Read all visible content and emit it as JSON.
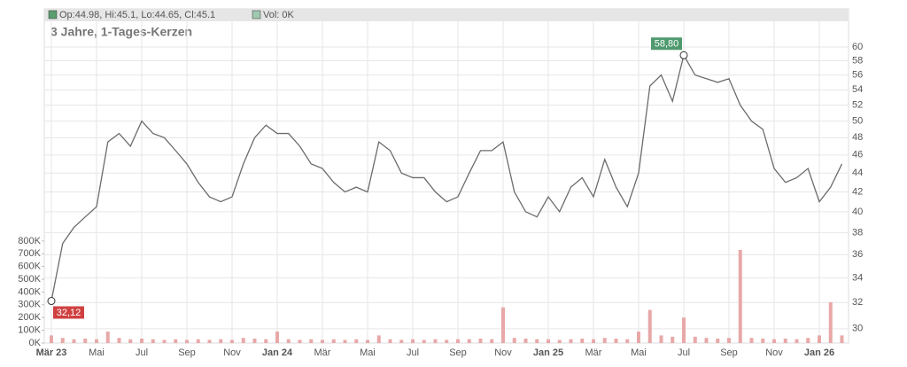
{
  "chart_data": {
    "type": "line",
    "title": "3 Jahre, 1-Tages-Kerzen",
    "header_price": "Op:44.98, Hi:45.1, Lo:44.65, Cl:45.1",
    "header_volume": "Vol: 0K",
    "categories": [
      "Mär 23",
      null,
      null,
      null,
      "Mai",
      null,
      null,
      null,
      "Jul",
      null,
      null,
      null,
      "Sep",
      null,
      null,
      null,
      "Nov",
      null,
      null,
      null,
      "Jan 24",
      null,
      null,
      null,
      "Mär",
      null,
      null,
      null,
      "Mai",
      null,
      null,
      null,
      "Jul",
      null,
      null,
      null,
      "Sep",
      null,
      null,
      null,
      "Nov",
      null,
      null,
      null,
      "Jan 25",
      null,
      null,
      null,
      "Mär",
      null,
      null,
      null,
      "Mai",
      null,
      null,
      null,
      "Jul",
      null,
      null,
      null,
      "Sep",
      null,
      null,
      null,
      "Nov",
      null,
      null,
      null,
      "Jan 26",
      null,
      null
    ],
    "price": {
      "color": "#6b6b6b",
      "values": [
        32.12,
        37,
        38.5,
        39.5,
        40.5,
        47.5,
        48.5,
        47,
        50,
        48.5,
        48,
        46.5,
        45,
        43,
        41.5,
        41,
        41.5,
        45,
        48,
        49.5,
        48.5,
        48.5,
        47,
        45,
        44.5,
        43,
        42,
        42.5,
        42,
        47.5,
        46.5,
        44,
        43.5,
        43.5,
        42,
        41,
        41.5,
        44,
        46.5,
        46.5,
        47.5,
        42,
        40,
        39.5,
        41.5,
        40,
        42.5,
        43.5,
        41.5,
        45.5,
        42.5,
        40.5,
        44,
        54.5,
        56,
        52.5,
        58.8,
        56,
        55.5,
        55,
        55.5,
        52,
        50,
        49,
        44.5,
        43,
        43.5,
        44.5,
        41,
        42.5,
        45
      ],
      "log_scale": true,
      "ylim": [
        28.96,
        65.9
      ],
      "yticks": [
        30,
        32,
        34,
        36,
        38,
        40,
        42,
        44,
        46,
        48,
        50,
        52,
        54,
        56,
        58,
        60
      ]
    },
    "volume": {
      "color": "#e8a8a8",
      "values": [
        60000,
        40000,
        30000,
        35000,
        30000,
        90000,
        40000,
        30000,
        35000,
        30000,
        25000,
        30000,
        25000,
        30000,
        25000,
        30000,
        25000,
        40000,
        35000,
        30000,
        90000,
        30000,
        25000,
        30000,
        25000,
        30000,
        25000,
        30000,
        25000,
        60000,
        30000,
        25000,
        30000,
        25000,
        30000,
        25000,
        30000,
        30000,
        35000,
        30000,
        280000,
        40000,
        35000,
        30000,
        30000,
        25000,
        30000,
        35000,
        30000,
        40000,
        35000,
        30000,
        90000,
        260000,
        60000,
        50000,
        200000,
        50000,
        40000,
        35000,
        40000,
        730000,
        40000,
        35000,
        30000,
        35000,
        30000,
        40000,
        60000,
        320000,
        60000
      ],
      "ylim": [
        0,
        2620000
      ],
      "yticks": [
        {
          "value": 0,
          "label": "0K"
        },
        {
          "value": 100000,
          "label": "100K"
        },
        {
          "value": 200000,
          "label": "200K"
        },
        {
          "value": 300000,
          "label": "300K"
        },
        {
          "value": 400000,
          "label": "400K"
        },
        {
          "value": 500000,
          "label": "500K"
        },
        {
          "value": 600000,
          "label": "600K"
        },
        {
          "value": 700000,
          "label": "700K"
        },
        {
          "value": 800000,
          "label": "800K"
        }
      ]
    },
    "min_label": {
      "value": 32.12,
      "label": "32,12",
      "color": "#d04040"
    },
    "max_label": {
      "value": 58.8,
      "label": "58,80",
      "color": "#4e9a6e"
    },
    "grid": true
  }
}
